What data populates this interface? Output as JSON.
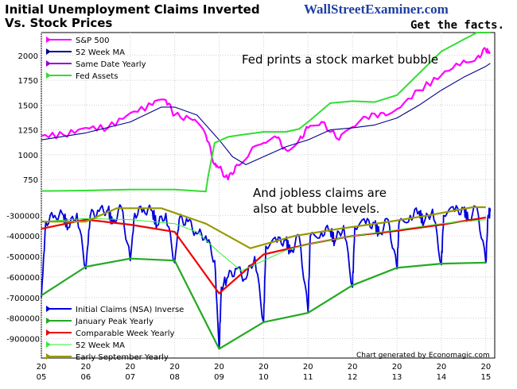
{
  "header": {
    "title_line1": "Initial Unemployment Claims Inverted",
    "title_line2": "Vs. Stock Prices",
    "brand": "WallStreetExaminer.com",
    "tagline": "Get the facts."
  },
  "credit": "Chart generated by Economagic.com",
  "colors": {
    "background": "#ffffff",
    "sp500": "#ff00ff",
    "sp500_ma": "#00008b",
    "same_date": "#9900cc",
    "fed_assets": "#33dd33",
    "claims": "#0000dd",
    "january_peak": "#22aa22",
    "comparable_week": "#ee0000",
    "claims_ma": "#33ee33",
    "early_september": "#999900"
  },
  "chart_data": [
    {
      "type": "line",
      "panel": "top",
      "annotation": "Fed prints a stock market bubble",
      "y_ticks": [
        750,
        1000,
        1250,
        1500,
        1750,
        2000
      ],
      "ylim": [
        560,
        2230
      ],
      "legend_position": "top-left",
      "series": [
        {
          "name": "S&P 500",
          "key": "sp500",
          "x": [
            2005.0,
            2005.5,
            2006.0,
            2006.5,
            2007.0,
            2007.5,
            2007.8,
            2008.0,
            2008.4,
            2008.7,
            2008.9,
            2009.0,
            2009.2,
            2009.4,
            2009.7,
            2010.0,
            2010.3,
            2010.5,
            2010.8,
            2011.0,
            2011.3,
            2011.7,
            2012.0,
            2012.3,
            2012.7,
            2013.0,
            2013.5,
            2014.0,
            2014.5,
            2014.8,
            2015.0,
            2015.1
          ],
          "y": [
            1190,
            1200,
            1270,
            1270,
            1420,
            1500,
            1550,
            1400,
            1350,
            1200,
            900,
            870,
            750,
            900,
            1030,
            1120,
            1170,
            1050,
            1150,
            1270,
            1330,
            1150,
            1280,
            1380,
            1420,
            1460,
            1650,
            1800,
            1950,
            1980,
            2060,
            2020
          ]
        },
        {
          "name": "52 Week MA",
          "key": "sp500_ma",
          "x": [
            2005.0,
            2006.0,
            2007.0,
            2007.7,
            2008.0,
            2008.5,
            2009.0,
            2009.3,
            2009.6,
            2010.0,
            2010.5,
            2011.0,
            2011.5,
            2012.0,
            2012.5,
            2013.0,
            2013.5,
            2014.0,
            2014.5,
            2015.0,
            2015.1
          ],
          "y": [
            1150,
            1220,
            1330,
            1480,
            1480,
            1400,
            1150,
            980,
            900,
            980,
            1080,
            1150,
            1250,
            1270,
            1300,
            1370,
            1500,
            1650,
            1780,
            1890,
            1920
          ]
        },
        {
          "name": "Same Date Yearly",
          "key": "same_date",
          "x": [],
          "y": []
        },
        {
          "name": "Fed Assets",
          "key": "fed_assets",
          "x": [
            2005.0,
            2006.0,
            2007.0,
            2008.0,
            2008.7,
            2008.75,
            2008.9,
            2009.2,
            2009.5,
            2010.0,
            2010.5,
            2010.8,
            2011.0,
            2011.5,
            2012.0,
            2012.5,
            2013.0,
            2013.5,
            2014.0,
            2014.5,
            2014.8,
            2015.1
          ],
          "y": [
            635,
            640,
            650,
            650,
            630,
            780,
            1120,
            1180,
            1200,
            1230,
            1230,
            1260,
            1330,
            1520,
            1540,
            1530,
            1600,
            1820,
            2040,
            2160,
            2230,
            2230
          ]
        }
      ]
    },
    {
      "type": "line",
      "panel": "bottom",
      "annotation_line1": "And jobless claims are",
      "annotation_line2": "also at bubble levels.",
      "y_ticks": [
        -900000,
        -800000,
        -700000,
        -600000,
        -500000,
        -400000,
        -300000
      ],
      "y_tick_labels": [
        "-900000",
        "-800000",
        "-700000",
        "-600000",
        "-500000",
        "-400000",
        "-300000"
      ],
      "ylim": [
        -995000,
        -225000
      ],
      "legend_position": "bottom-left",
      "series": [
        {
          "name": "Initial Claims (NSA) Inverse",
          "key": "claims",
          "x": [
            2005.0,
            2005.1,
            2005.3,
            2005.5,
            2005.6,
            2005.8,
            2006.0,
            2006.1,
            2006.3,
            2006.5,
            2006.6,
            2006.8,
            2007.0,
            2007.1,
            2007.3,
            2007.5,
            2007.6,
            2007.8,
            2008.0,
            2008.1,
            2008.3,
            2008.5,
            2008.7,
            2008.9,
            2009.0,
            2009.05,
            2009.2,
            2009.4,
            2009.6,
            2009.8,
            2010.0,
            2010.05,
            2010.3,
            2010.5,
            2010.6,
            2010.8,
            2011.0,
            2011.05,
            2011.3,
            2011.5,
            2011.6,
            2011.8,
            2012.0,
            2012.05,
            2012.3,
            2012.5,
            2012.6,
            2012.8,
            2013.0,
            2013.05,
            2013.3,
            2013.5,
            2013.6,
            2013.8,
            2014.0,
            2014.05,
            2014.3,
            2014.5,
            2014.6,
            2014.8,
            2015.0,
            2015.05,
            2015.1
          ],
          "y": [
            -700000,
            -330000,
            -300000,
            -300000,
            -360000,
            -290000,
            -560000,
            -300000,
            -280000,
            -270000,
            -340000,
            -260000,
            -520000,
            -290000,
            -270000,
            -280000,
            -350000,
            -290000,
            -530000,
            -320000,
            -330000,
            -390000,
            -400000,
            -520000,
            -950000,
            -650000,
            -600000,
            -560000,
            -610000,
            -500000,
            -820000,
            -450000,
            -430000,
            -420000,
            -480000,
            -400000,
            -770000,
            -400000,
            -380000,
            -370000,
            -430000,
            -350000,
            -650000,
            -360000,
            -340000,
            -340000,
            -390000,
            -320000,
            -560000,
            -330000,
            -300000,
            -280000,
            -340000,
            -270000,
            -540000,
            -300000,
            -280000,
            -270000,
            -320000,
            -260000,
            -530000,
            -300000,
            -280000
          ]
        },
        {
          "name": "January Peak Yearly",
          "key": "january_peak",
          "x": [
            2005.0,
            2006.0,
            2007.0,
            2008.0,
            2009.0,
            2010.0,
            2011.0,
            2012.0,
            2013.0,
            2014.0,
            2015.0
          ],
          "y": [
            -690000,
            -550000,
            -510000,
            -520000,
            -950000,
            -820000,
            -775000,
            -640000,
            -555000,
            -535000,
            -530000
          ]
        },
        {
          "name": "Comparable Week Yearly",
          "key": "comparable_week",
          "x": [
            2005.0,
            2006.0,
            2007.0,
            2008.0,
            2009.0,
            2010.0,
            2011.0,
            2012.0,
            2013.0,
            2014.0,
            2015.0
          ],
          "y": [
            -365000,
            -320000,
            -345000,
            -380000,
            -680000,
            -490000,
            -440000,
            -400000,
            -375000,
            -345000,
            -310000
          ]
        },
        {
          "name": "52 Week MA",
          "key": "claims_ma",
          "x": [
            2005.0,
            2006.0,
            2007.0,
            2008.0,
            2008.5,
            2009.0,
            2009.5,
            2010.0,
            2010.5,
            2011.0,
            2012.0,
            2013.0,
            2014.0,
            2015.0
          ],
          "y": [
            -330000,
            -315000,
            -320000,
            -340000,
            -380000,
            -480000,
            -570000,
            -520000,
            -470000,
            -440000,
            -400000,
            -370000,
            -340000,
            -320000
          ]
        },
        {
          "name": "Early September Yearly",
          "key": "early_september",
          "x": [
            2005.0,
            2006.0,
            2006.7,
            2007.7,
            2008.7,
            2009.7,
            2010.7,
            2011.7,
            2012.7,
            2013.7,
            2014.7,
            2015.0
          ],
          "y": [
            -330000,
            -330000,
            -265000,
            -265000,
            -340000,
            -460000,
            -400000,
            -365000,
            -335000,
            -300000,
            -260000,
            -260000
          ]
        }
      ]
    }
  ],
  "x_axis": {
    "xlim": [
      2005,
      2015.2
    ],
    "ticks": [
      2005,
      2006,
      2007,
      2008,
      2009,
      2010,
      2011,
      2012,
      2013,
      2014,
      2015
    ],
    "top_labels": [
      "20",
      "20",
      "20",
      "20",
      "20",
      "20",
      "20",
      "20",
      "20",
      "20",
      "20"
    ],
    "bottom_labels": [
      "05",
      "06",
      "07",
      "08",
      "09",
      "10",
      "11",
      "12",
      "13",
      "14",
      "15"
    ],
    "grid": true
  }
}
